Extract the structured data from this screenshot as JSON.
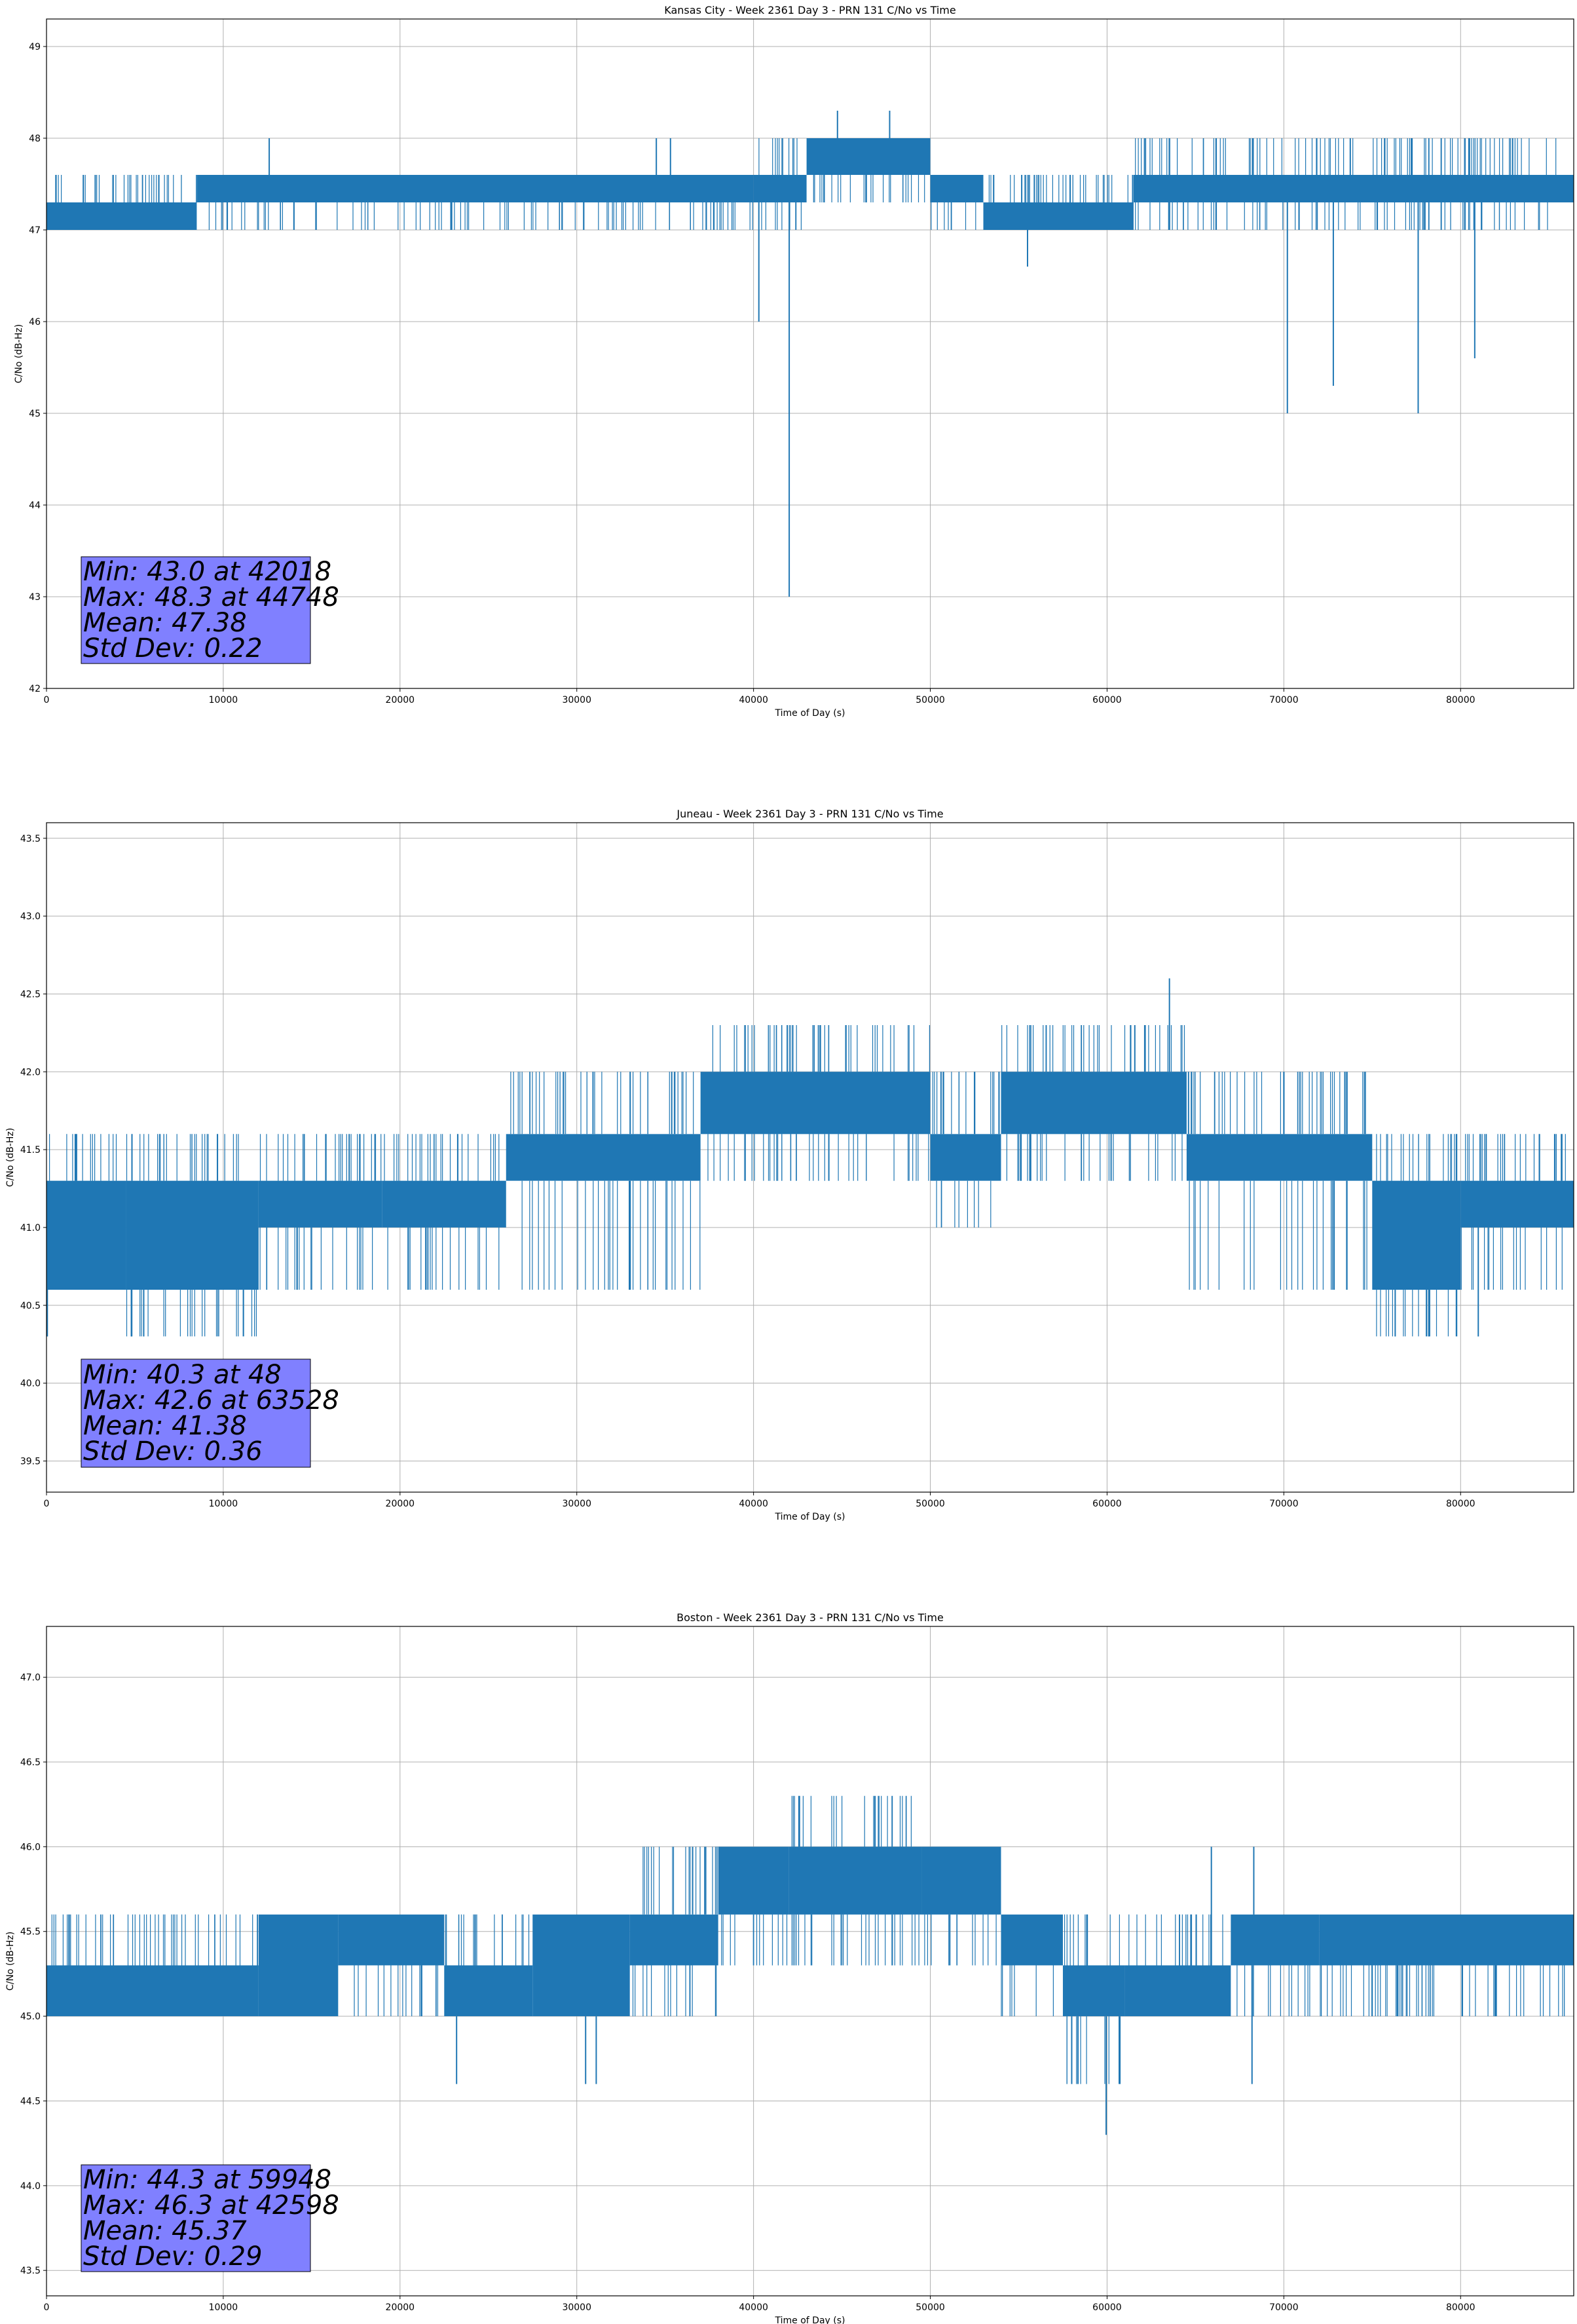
{
  "chart_data": [
    {
      "type": "line",
      "title": "Kansas City - Week 2361 Day 3 - PRN 131 C/No vs Time",
      "xlabel": "Time of Day (s)",
      "ylabel": "C/No (dB-Hz)",
      "xlim": [
        0,
        86400
      ],
      "ylim": [
        42,
        49.3
      ],
      "xticks": [
        0,
        10000,
        20000,
        30000,
        40000,
        50000,
        60000,
        70000,
        80000
      ],
      "yticks": [
        42,
        43,
        44,
        45,
        46,
        47,
        48,
        49
      ],
      "ytick_labels": [
        "42",
        "43",
        "44",
        "45",
        "46",
        "47",
        "48",
        "49"
      ],
      "grid": true,
      "line_color": "#1f77b4",
      "series": [
        {
          "name": "C/No",
          "bands": [
            {
              "x": [
                0,
                8500
              ],
              "low": 47.0,
              "high": 47.3,
              "spike_high": 47.6
            },
            {
              "x": [
                8500,
                40000
              ],
              "low": 47.3,
              "high": 47.6,
              "spike_low": 47.0,
              "spike_high": 47.6
            },
            {
              "x": [
                40000,
                43000
              ],
              "low": 47.3,
              "high": 47.6,
              "spike_low": 47.0,
              "spike_high": 48.0
            },
            {
              "x": [
                43000,
                50000
              ],
              "low": 47.6,
              "high": 48.0,
              "spike_low": 47.3,
              "spike_high": 48.0
            },
            {
              "x": [
                50000,
                53000
              ],
              "low": 47.3,
              "high": 47.6,
              "spike_low": 47.0,
              "spike_high": 47.6
            },
            {
              "x": [
                53000,
                61500
              ],
              "low": 47.0,
              "high": 47.3,
              "spike_high": 47.6
            },
            {
              "x": [
                61500,
                86400
              ],
              "low": 47.3,
              "high": 47.6,
              "spike_low": 47.0,
              "spike_high": 48.0
            }
          ],
          "spikes": [
            {
              "x": 12600,
              "y": 48.0
            },
            {
              "x": 34500,
              "y": 48.0
            },
            {
              "x": 35300,
              "y": 48.0
            },
            {
              "x": 40300,
              "y": 46.0
            },
            {
              "x": 42018,
              "y": 43.0
            },
            {
              "x": 44748,
              "y": 48.3
            },
            {
              "x": 47700,
              "y": 48.3
            },
            {
              "x": 55500,
              "y": 46.6
            },
            {
              "x": 70200,
              "y": 45.0
            },
            {
              "x": 72800,
              "y": 45.3
            },
            {
              "x": 77600,
              "y": 45.0
            },
            {
              "x": 80800,
              "y": 45.6
            }
          ]
        }
      ],
      "stats": {
        "lines": [
          "Min: 43.0 at 42018",
          "Max: 48.3 at 44748",
          "Mean: 47.38",
          "Std Dev: 0.22"
        ],
        "min": 43.0,
        "min_time": 42018,
        "max": 48.3,
        "max_time": 44748,
        "mean": 47.38,
        "std_dev": 0.22
      }
    },
    {
      "type": "line",
      "title": "Juneau - Week 2361 Day 3 - PRN 131 C/No vs Time",
      "xlabel": "Time of Day (s)",
      "ylabel": "C/No (dB-Hz)",
      "xlim": [
        0,
        86400
      ],
      "ylim": [
        39.3,
        43.6
      ],
      "xticks": [
        0,
        10000,
        20000,
        30000,
        40000,
        50000,
        60000,
        70000,
        80000
      ],
      "yticks": [
        39.5,
        40.0,
        40.5,
        41.0,
        41.5,
        42.0,
        42.5,
        43.0,
        43.5
      ],
      "ytick_labels": [
        "39.5",
        "40.0",
        "40.5",
        "41.0",
        "41.5",
        "42.0",
        "42.5",
        "43.0",
        "43.5"
      ],
      "grid": true,
      "line_color": "#1f77b4",
      "series": [
        {
          "name": "C/No",
          "bands": [
            {
              "x": [
                0,
                4500
              ],
              "low": 40.6,
              "high": 41.3,
              "spike_high": 41.6
            },
            {
              "x": [
                4500,
                12000
              ],
              "low": 40.6,
              "high": 41.3,
              "spike_low": 40.3,
              "spike_high": 41.6
            },
            {
              "x": [
                12000,
                19000
              ],
              "low": 41.0,
              "high": 41.3,
              "spike_low": 40.6,
              "spike_high": 41.6
            },
            {
              "x": [
                19000,
                26000
              ],
              "low": 41.0,
              "high": 41.3,
              "spike_low": 40.6,
              "spike_high": 41.6
            },
            {
              "x": [
                26000,
                37000
              ],
              "low": 41.3,
              "high": 41.6,
              "spike_low": 40.6,
              "spike_high": 42.0
            },
            {
              "x": [
                37000,
                50000
              ],
              "low": 41.6,
              "high": 42.0,
              "spike_low": 41.3,
              "spike_high": 42.3
            },
            {
              "x": [
                50000,
                54000
              ],
              "low": 41.3,
              "high": 41.6,
              "spike_low": 41.0,
              "spike_high": 42.0
            },
            {
              "x": [
                54000,
                64500
              ],
              "low": 41.6,
              "high": 42.0,
              "spike_low": 41.3,
              "spike_high": 42.3
            },
            {
              "x": [
                64500,
                75000
              ],
              "low": 41.3,
              "high": 41.6,
              "spike_low": 40.6,
              "spike_high": 42.0
            },
            {
              "x": [
                75000,
                80000
              ],
              "low": 40.6,
              "high": 41.3,
              "spike_low": 40.3,
              "spike_high": 41.6
            },
            {
              "x": [
                80000,
                86400
              ],
              "low": 41.0,
              "high": 41.3,
              "spike_low": 40.6,
              "spike_high": 41.6
            }
          ],
          "spikes": [
            {
              "x": 48,
              "y": 40.3
            },
            {
              "x": 4800,
              "y": 40.3
            },
            {
              "x": 5500,
              "y": 40.3
            },
            {
              "x": 63528,
              "y": 42.6
            },
            {
              "x": 76300,
              "y": 40.3
            },
            {
              "x": 78200,
              "y": 40.3
            },
            {
              "x": 81000,
              "y": 40.3
            }
          ]
        }
      ],
      "stats": {
        "lines": [
          "Min: 40.3 at 48",
          "Max: 42.6 at 63528",
          "Mean: 41.38",
          "Std Dev: 0.36"
        ],
        "min": 40.3,
        "min_time": 48,
        "max": 42.6,
        "max_time": 63528,
        "mean": 41.38,
        "std_dev": 0.36
      }
    },
    {
      "type": "line",
      "title": "Boston - Week 2361 Day 3 - PRN 131 C/No vs Time",
      "xlabel": "Time of Day (s)",
      "ylabel": "C/No (dB-Hz)",
      "xlim": [
        0,
        86400
      ],
      "ylim": [
        43.35,
        47.3
      ],
      "xticks": [
        0,
        10000,
        20000,
        30000,
        40000,
        50000,
        60000,
        70000,
        80000
      ],
      "yticks": [
        43.5,
        44.0,
        44.5,
        45.0,
        45.5,
        46.0,
        46.5,
        47.0
      ],
      "ytick_labels": [
        "43.5",
        "44.0",
        "44.5",
        "45.0",
        "45.5",
        "46.0",
        "46.5",
        "47.0"
      ],
      "grid": true,
      "line_color": "#1f77b4",
      "series": [
        {
          "name": "C/No",
          "bands": [
            {
              "x": [
                0,
                12000
              ],
              "low": 45.0,
              "high": 45.3,
              "spike_high": 45.6
            },
            {
              "x": [
                12000,
                16500
              ],
              "low": 45.0,
              "high": 45.6,
              "spike_high": 45.6
            },
            {
              "x": [
                16500,
                22500
              ],
              "low": 45.3,
              "high": 45.6,
              "spike_low": 45.0,
              "spike_high": 45.6
            },
            {
              "x": [
                22500,
                27500
              ],
              "low": 45.0,
              "high": 45.3,
              "spike_high": 45.6
            },
            {
              "x": [
                27500,
                33000
              ],
              "low": 45.0,
              "high": 45.6,
              "spike_high": 45.6
            },
            {
              "x": [
                33000,
                38000
              ],
              "low": 45.3,
              "high": 45.6,
              "spike_low": 45.0,
              "spike_high": 46.0
            },
            {
              "x": [
                38000,
                42000
              ],
              "low": 45.6,
              "high": 46.0,
              "spike_low": 45.3,
              "spike_high": 46.0
            },
            {
              "x": [
                42000,
                49500
              ],
              "low": 45.6,
              "high": 46.0,
              "spike_low": 45.3,
              "spike_high": 46.3
            },
            {
              "x": [
                49500,
                54000
              ],
              "low": 45.6,
              "high": 46.0,
              "spike_low": 45.3,
              "spike_high": 46.0
            },
            {
              "x": [
                54000,
                57500
              ],
              "low": 45.3,
              "high": 45.6,
              "spike_low": 45.0,
              "spike_high": 45.6
            },
            {
              "x": [
                57500,
                61000
              ],
              "low": 45.0,
              "high": 45.3,
              "spike_low": 44.6,
              "spike_high": 45.6
            },
            {
              "x": [
                61000,
                67000
              ],
              "low": 45.0,
              "high": 45.3,
              "spike_high": 45.6
            },
            {
              "x": [
                67000,
                72000
              ],
              "low": 45.3,
              "high": 45.6,
              "spike_low": 45.0,
              "spike_high": 45.6
            },
            {
              "x": [
                72000,
                86400
              ],
              "low": 45.3,
              "high": 45.6,
              "spike_low": 45.0,
              "spike_high": 45.6
            }
          ],
          "spikes": [
            {
              "x": 23200,
              "y": 44.6
            },
            {
              "x": 30500,
              "y": 44.6
            },
            {
              "x": 31100,
              "y": 44.6
            },
            {
              "x": 42598,
              "y": 46.3
            },
            {
              "x": 58000,
              "y": 44.6
            },
            {
              "x": 59948,
              "y": 44.3
            },
            {
              "x": 65900,
              "y": 46.0
            },
            {
              "x": 68200,
              "y": 44.6
            },
            {
              "x": 68300,
              "y": 46.0
            }
          ]
        }
      ],
      "stats": {
        "lines": [
          "Min: 44.3 at 59948",
          "Max: 46.3 at 42598",
          "Mean: 45.37",
          "Std Dev: 0.29"
        ],
        "min": 44.3,
        "min_time": 59948,
        "max": 46.3,
        "max_time": 42598,
        "mean": 45.37,
        "std_dev": 0.29
      }
    }
  ]
}
